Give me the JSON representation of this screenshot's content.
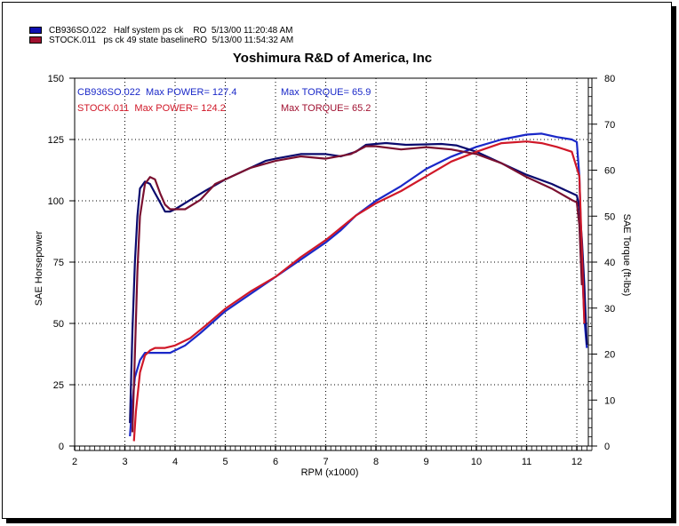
{
  "legend": [
    {
      "file": "CB936SO.022",
      "desc": "Half system ps ck",
      "op": "RO",
      "date": "5/13/00 11:20:48 AM",
      "color": "#1010b0"
    },
    {
      "file": "STOCK.011",
      "desc": "ps ck 49 state baseline",
      "op": "RO",
      "date": "5/13/00 11:54:32 AM",
      "color": "#a01030"
    }
  ],
  "chart_data": {
    "type": "line",
    "title": "Yoshimura R&D of America, Inc",
    "xlabel": "RPM (x1000)",
    "ylabel": "SAE Horsepower",
    "y2label": "SAE Torque (ft-lbs)",
    "xlim": [
      2,
      12.3
    ],
    "ylim": [
      0,
      150
    ],
    "y2lim": [
      0,
      80
    ],
    "x_ticks": [
      2,
      3,
      4,
      5,
      6,
      7,
      8,
      9,
      10,
      11,
      12
    ],
    "y_ticks": [
      0,
      25,
      50,
      75,
      100,
      125,
      150
    ],
    "y2_ticks": [
      0,
      10,
      20,
      30,
      40,
      50,
      60,
      70,
      80
    ],
    "grid": true,
    "annotations": [
      {
        "text": "CB936SO.022  Max POWER= 127.4",
        "color": "#1a28c8"
      },
      {
        "text": "Max TORQUE= 65.9",
        "color": "#1a28c8"
      },
      {
        "text": "STOCK.011  Max POWER= 124.2",
        "color": "#d01828"
      },
      {
        "text": "Max TORQUE= 65.2",
        "color": "#a01030"
      }
    ],
    "series": [
      {
        "name": "CB936SO.022",
        "measure": "horsepower",
        "axis": "left",
        "color": "#1a28c8",
        "x": [
          3.1,
          3.15,
          3.2,
          3.3,
          3.4,
          3.5,
          3.6,
          3.7,
          3.9,
          4.0,
          4.2,
          4.5,
          5.0,
          5.5,
          6.0,
          6.5,
          7.0,
          7.3,
          7.6,
          8.0,
          8.5,
          9.0,
          9.5,
          10.0,
          10.5,
          11.0,
          11.3,
          11.6,
          11.9,
          12.0,
          12.05,
          12.1,
          12.15,
          12.2
        ],
        "y": [
          4,
          18,
          28,
          35,
          38,
          38,
          38,
          38,
          38,
          39,
          41,
          46,
          55,
          62,
          69,
          76,
          83,
          88,
          94,
          100,
          106,
          113,
          118,
          122,
          125,
          127,
          127.4,
          126,
          125,
          124,
          110,
          75,
          52,
          40
        ]
      },
      {
        "name": "CB936SO.022",
        "measure": "torque",
        "axis": "right",
        "color": "#0a0a6e",
        "x": [
          3.1,
          3.15,
          3.2,
          3.25,
          3.3,
          3.4,
          3.5,
          3.6,
          3.7,
          3.8,
          3.9,
          4.0,
          4.3,
          4.6,
          5.0,
          5.5,
          5.8,
          6.0,
          6.5,
          7.0,
          7.3,
          7.6,
          7.8,
          8.2,
          8.6,
          9.0,
          9.3,
          9.6,
          10.0,
          10.5,
          11.0,
          11.5,
          11.9,
          12.0,
          12.05,
          12.1,
          12.15,
          12.2
        ],
        "y": [
          5,
          25,
          40,
          50,
          56,
          57.5,
          57,
          55,
          53,
          51,
          51,
          51.5,
          53.5,
          55.5,
          58,
          60.5,
          62,
          62.5,
          63.5,
          63.5,
          63,
          64,
          65.5,
          65.9,
          65.5,
          65.6,
          65.7,
          65.4,
          64,
          61.5,
          59,
          57,
          55,
          54.5,
          52,
          45,
          35,
          22
        ]
      },
      {
        "name": "STOCK.011",
        "measure": "horsepower",
        "axis": "left",
        "color": "#d01828",
        "x": [
          3.18,
          3.22,
          3.3,
          3.4,
          3.5,
          3.6,
          3.7,
          3.8,
          4.0,
          4.3,
          4.6,
          5.0,
          5.5,
          6.0,
          6.5,
          7.0,
          7.3,
          7.6,
          8.0,
          8.5,
          9.0,
          9.5,
          10.0,
          10.5,
          11.0,
          11.3,
          11.6,
          11.9,
          12.05,
          12.1,
          12.15
        ],
        "y": [
          2,
          14,
          30,
          37,
          39,
          40,
          40,
          40,
          41,
          44,
          49,
          56,
          63,
          69,
          77,
          84,
          89,
          94,
          99,
          104,
          110,
          116,
          120,
          123.5,
          124.2,
          123.5,
          122,
          120,
          110,
          80,
          50
        ]
      },
      {
        "name": "STOCK.011",
        "measure": "torque",
        "axis": "right",
        "color": "#7a1030",
        "x": [
          3.15,
          3.2,
          3.25,
          3.3,
          3.4,
          3.5,
          3.6,
          3.7,
          3.8,
          3.9,
          4.0,
          4.2,
          4.5,
          4.8,
          5.0,
          5.5,
          6.0,
          6.5,
          7.0,
          7.5,
          7.8,
          8.0,
          8.5,
          9.0,
          9.5,
          10.0,
          10.5,
          11.0,
          11.5,
          11.9,
          12.0,
          12.05,
          12.1
        ],
        "y": [
          3,
          20,
          38,
          50,
          57,
          58.5,
          58,
          55,
          52.5,
          51.5,
          51.5,
          51.5,
          53.5,
          57,
          58,
          60.5,
          62,
          63,
          62.5,
          63.5,
          65.2,
          65.2,
          64.5,
          65,
          64.5,
          63.5,
          61.5,
          58.5,
          56,
          53.5,
          53,
          48,
          35
        ]
      }
    ]
  }
}
